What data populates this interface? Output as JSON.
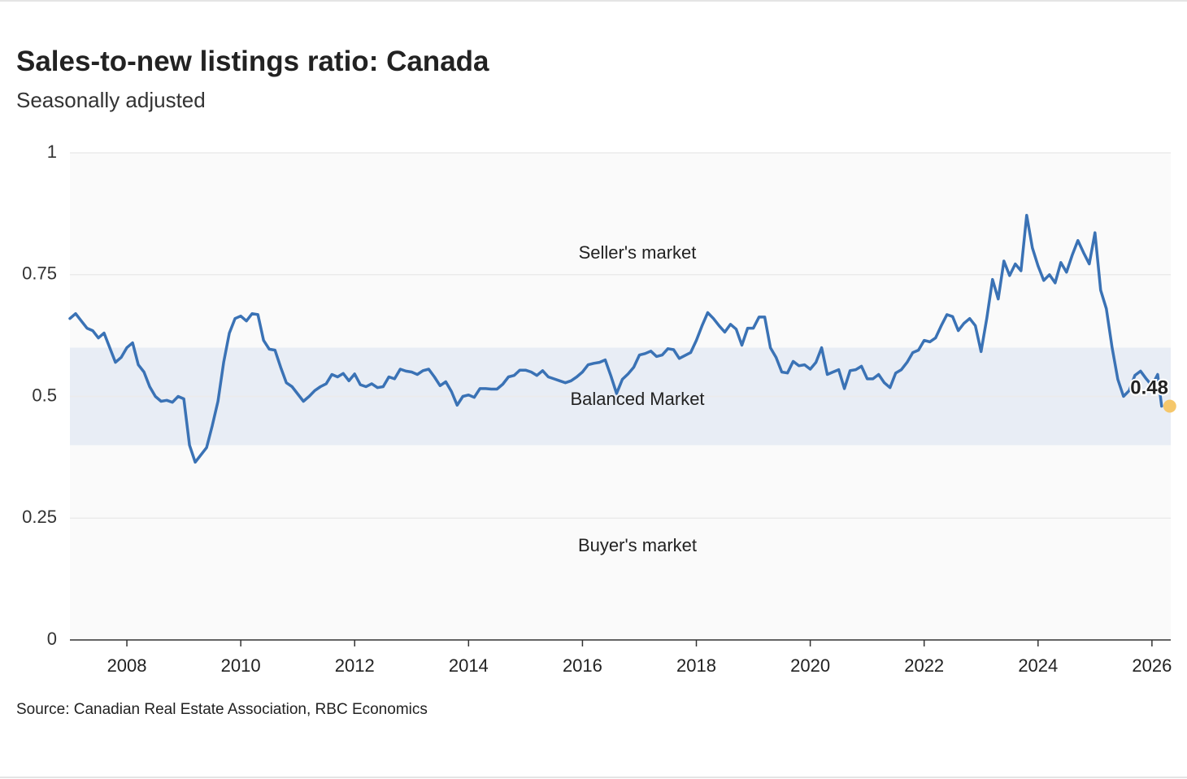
{
  "title": "Sales-to-new listings ratio: Canada",
  "subtitle": "Seasonally adjusted",
  "source": "Source: Canadian Real Estate Association, RBC Economics",
  "colors": {
    "line": "#3a72b5",
    "balanced_band": "#e8edf5",
    "plot_bg": "#fafafa",
    "last_point": "#f5c76b",
    "text": "#222222"
  },
  "chart_data": {
    "type": "line",
    "title": "Sales-to-new listings ratio: Canada",
    "subtitle": "Seasonally adjusted",
    "xlabel": "",
    "ylabel": "",
    "xlim": [
      2007.0,
      2026.33
    ],
    "ylim": [
      0,
      1
    ],
    "y_ticks": [
      0,
      0.25,
      0.5,
      0.75,
      1
    ],
    "y_tick_labels": [
      "0",
      "0.25",
      "0.5",
      "0.75",
      "1"
    ],
    "x_ticks": [
      2008,
      2010,
      2012,
      2014,
      2016,
      2018,
      2020,
      2022,
      2024,
      2026
    ],
    "x_tick_labels": [
      "2008",
      "2010",
      "2012",
      "2014",
      "2016",
      "2018",
      "2020",
      "2022",
      "2024",
      "2026"
    ],
    "grid": "horizontal",
    "bands": [
      {
        "label": "Seller's market",
        "from": 0.6,
        "to": 1.0
      },
      {
        "label": "Balanced Market",
        "from": 0.4,
        "to": 0.6
      },
      {
        "label": "Buyer's market",
        "from": 0.0,
        "to": 0.4
      }
    ],
    "last_value_label": "0.48",
    "last_point": {
      "x": 2026.17,
      "y": 0.48
    },
    "series": [
      {
        "points": [
          [
            2007.0,
            0.66
          ],
          [
            2007.1,
            0.67
          ],
          [
            2007.2,
            0.655
          ],
          [
            2007.3,
            0.64
          ],
          [
            2007.4,
            0.635
          ],
          [
            2007.5,
            0.62
          ],
          [
            2007.6,
            0.63
          ],
          [
            2007.7,
            0.6
          ],
          [
            2007.8,
            0.57
          ],
          [
            2007.9,
            0.58
          ],
          [
            2008.0,
            0.6
          ],
          [
            2008.1,
            0.61
          ],
          [
            2008.2,
            0.565
          ],
          [
            2008.3,
            0.55
          ],
          [
            2008.4,
            0.52
          ],
          [
            2008.5,
            0.5
          ],
          [
            2008.6,
            0.49
          ],
          [
            2008.7,
            0.492
          ],
          [
            2008.8,
            0.488
          ],
          [
            2008.9,
            0.5
          ],
          [
            2009.0,
            0.495
          ],
          [
            2009.1,
            0.4
          ],
          [
            2009.2,
            0.365
          ],
          [
            2009.3,
            0.38
          ],
          [
            2009.4,
            0.395
          ],
          [
            2009.5,
            0.44
          ],
          [
            2009.6,
            0.49
          ],
          [
            2009.7,
            0.57
          ],
          [
            2009.8,
            0.63
          ],
          [
            2009.9,
            0.66
          ],
          [
            2010.0,
            0.665
          ],
          [
            2010.1,
            0.655
          ],
          [
            2010.2,
            0.67
          ],
          [
            2010.3,
            0.668
          ],
          [
            2010.4,
            0.615
          ],
          [
            2010.5,
            0.597
          ],
          [
            2010.6,
            0.595
          ],
          [
            2010.7,
            0.56
          ],
          [
            2010.8,
            0.528
          ],
          [
            2010.9,
            0.52
          ],
          [
            2011.0,
            0.505
          ],
          [
            2011.1,
            0.49
          ],
          [
            2011.2,
            0.5
          ],
          [
            2011.3,
            0.512
          ],
          [
            2011.4,
            0.52
          ],
          [
            2011.5,
            0.526
          ],
          [
            2011.6,
            0.545
          ],
          [
            2011.7,
            0.54
          ],
          [
            2011.8,
            0.547
          ],
          [
            2011.9,
            0.532
          ],
          [
            2012.0,
            0.546
          ],
          [
            2012.1,
            0.524
          ],
          [
            2012.2,
            0.52
          ],
          [
            2012.3,
            0.526
          ],
          [
            2012.4,
            0.518
          ],
          [
            2012.5,
            0.52
          ],
          [
            2012.6,
            0.54
          ],
          [
            2012.7,
            0.536
          ],
          [
            2012.8,
            0.556
          ],
          [
            2012.9,
            0.552
          ],
          [
            2013.0,
            0.55
          ],
          [
            2013.1,
            0.545
          ],
          [
            2013.2,
            0.553
          ],
          [
            2013.3,
            0.556
          ],
          [
            2013.4,
            0.54
          ],
          [
            2013.5,
            0.522
          ],
          [
            2013.6,
            0.53
          ],
          [
            2013.7,
            0.51
          ],
          [
            2013.8,
            0.482
          ],
          [
            2013.9,
            0.5
          ],
          [
            2014.0,
            0.503
          ],
          [
            2014.1,
            0.498
          ],
          [
            2014.2,
            0.516
          ],
          [
            2014.3,
            0.516
          ],
          [
            2014.4,
            0.515
          ],
          [
            2014.5,
            0.515
          ],
          [
            2014.6,
            0.525
          ],
          [
            2014.7,
            0.54
          ],
          [
            2014.8,
            0.543
          ],
          [
            2014.9,
            0.554
          ],
          [
            2015.0,
            0.554
          ],
          [
            2015.1,
            0.55
          ],
          [
            2015.2,
            0.543
          ],
          [
            2015.3,
            0.553
          ],
          [
            2015.4,
            0.54
          ],
          [
            2015.5,
            0.536
          ],
          [
            2015.6,
            0.532
          ],
          [
            2015.7,
            0.528
          ],
          [
            2015.8,
            0.532
          ],
          [
            2015.9,
            0.54
          ],
          [
            2016.0,
            0.55
          ],
          [
            2016.1,
            0.565
          ],
          [
            2016.2,
            0.568
          ],
          [
            2016.3,
            0.57
          ],
          [
            2016.4,
            0.575
          ],
          [
            2016.5,
            0.542
          ],
          [
            2016.6,
            0.506
          ],
          [
            2016.7,
            0.535
          ],
          [
            2016.8,
            0.546
          ],
          [
            2016.9,
            0.56
          ],
          [
            2017.0,
            0.585
          ],
          [
            2017.1,
            0.588
          ],
          [
            2017.2,
            0.593
          ],
          [
            2017.3,
            0.582
          ],
          [
            2017.4,
            0.585
          ],
          [
            2017.5,
            0.598
          ],
          [
            2017.6,
            0.596
          ],
          [
            2017.7,
            0.578
          ],
          [
            2017.8,
            0.584
          ],
          [
            2017.9,
            0.59
          ],
          [
            2018.0,
            0.615
          ],
          [
            2018.1,
            0.645
          ],
          [
            2018.2,
            0.672
          ],
          [
            2018.3,
            0.66
          ],
          [
            2018.4,
            0.645
          ],
          [
            2018.5,
            0.632
          ],
          [
            2018.6,
            0.648
          ],
          [
            2018.7,
            0.638
          ],
          [
            2018.8,
            0.605
          ],
          [
            2018.9,
            0.64
          ],
          [
            2019.0,
            0.64
          ],
          [
            2019.1,
            0.663
          ],
          [
            2019.2,
            0.663
          ],
          [
            2019.3,
            0.6
          ],
          [
            2019.4,
            0.58
          ],
          [
            2019.5,
            0.55
          ],
          [
            2019.6,
            0.548
          ],
          [
            2019.7,
            0.572
          ],
          [
            2019.8,
            0.563
          ],
          [
            2019.9,
            0.565
          ],
          [
            2020.0,
            0.556
          ],
          [
            2020.1,
            0.57
          ],
          [
            2020.2,
            0.6
          ],
          [
            2020.3,
            0.545
          ],
          [
            2020.4,
            0.55
          ],
          [
            2020.5,
            0.555
          ],
          [
            2020.6,
            0.516
          ],
          [
            2020.7,
            0.553
          ],
          [
            2020.8,
            0.555
          ],
          [
            2020.9,
            0.562
          ],
          [
            2021.0,
            0.536
          ],
          [
            2021.1,
            0.536
          ],
          [
            2021.2,
            0.545
          ],
          [
            2021.3,
            0.528
          ],
          [
            2021.4,
            0.518
          ],
          [
            2021.5,
            0.548
          ],
          [
            2021.6,
            0.555
          ],
          [
            2021.7,
            0.57
          ],
          [
            2021.8,
            0.59
          ],
          [
            2021.9,
            0.595
          ],
          [
            2022.0,
            0.615
          ],
          [
            2022.1,
            0.612
          ],
          [
            2022.2,
            0.62
          ],
          [
            2022.3,
            0.645
          ],
          [
            2022.4,
            0.668
          ],
          [
            2022.5,
            0.664
          ],
          [
            2022.6,
            0.635
          ],
          [
            2022.7,
            0.65
          ],
          [
            2022.8,
            0.66
          ],
          [
            2022.9,
            0.645
          ],
          [
            2023.0,
            0.592
          ],
          [
            2023.1,
            0.66
          ],
          [
            2023.2,
            0.74
          ],
          [
            2023.3,
            0.7
          ],
          [
            2023.4,
            0.778
          ],
          [
            2023.5,
            0.748
          ],
          [
            2023.6,
            0.772
          ],
          [
            2023.7,
            0.758
          ],
          [
            2023.8,
            0.872
          ],
          [
            2023.9,
            0.805
          ],
          [
            2024.0,
            0.768
          ],
          [
            2024.1,
            0.738
          ],
          [
            2024.2,
            0.75
          ],
          [
            2024.3,
            0.733
          ],
          [
            2024.4,
            0.775
          ],
          [
            2024.5,
            0.755
          ],
          [
            2024.6,
            0.79
          ],
          [
            2024.7,
            0.82
          ],
          [
            2024.8,
            0.795
          ],
          [
            2024.9,
            0.772
          ],
          [
            2025.0,
            0.836
          ],
          [
            2025.1,
            0.718
          ],
          [
            2025.2,
            0.68
          ],
          [
            2025.3,
            0.6
          ],
          [
            2025.4,
            0.535
          ],
          [
            2025.5,
            0.5
          ],
          [
            2025.6,
            0.512
          ],
          [
            2025.7,
            0.543
          ],
          [
            2025.8,
            0.552
          ],
          [
            2025.9,
            0.536
          ],
          [
            2026.0,
            0.522
          ],
          [
            2026.1,
            0.545
          ],
          [
            2026.17,
            0.48
          ]
        ]
      }
    ]
  }
}
